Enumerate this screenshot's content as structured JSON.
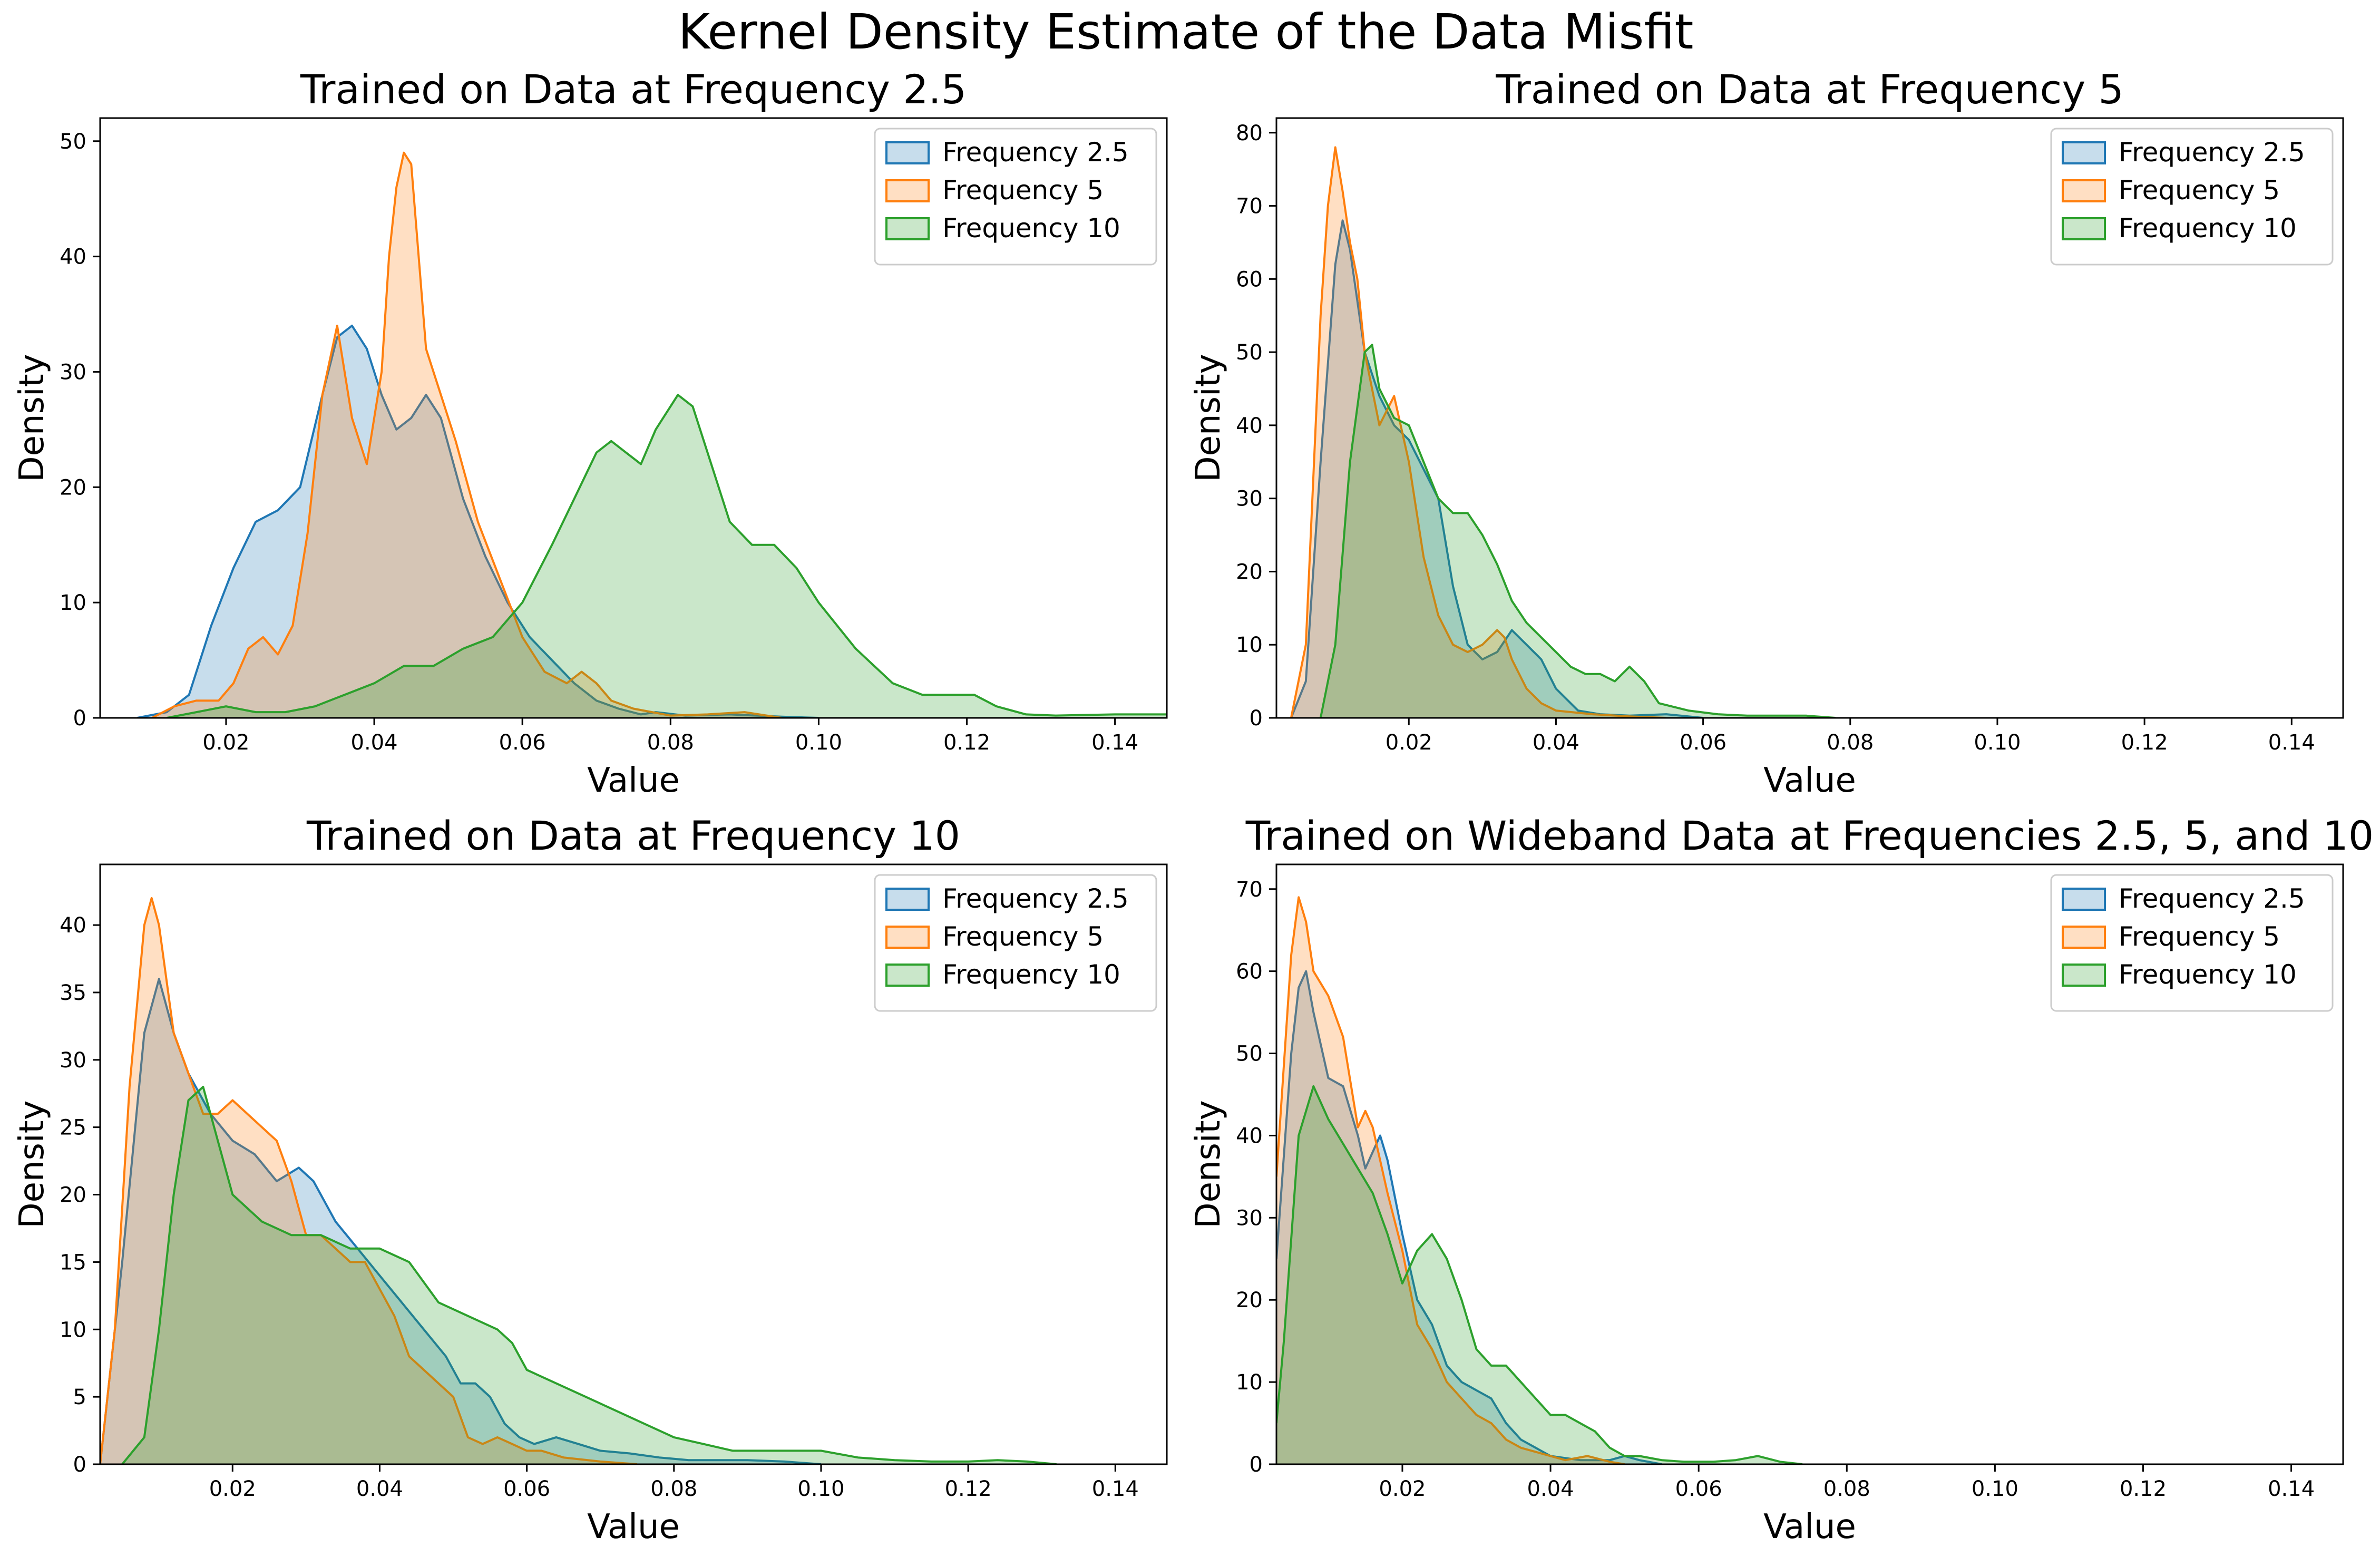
{
  "figure_title": "Kernel Density Estimate of the Data Misfit",
  "colors": {
    "Frequency 2.5": "#1f77b4",
    "Frequency 5": "#ff7f0e",
    "Frequency 10": "#2ca02c"
  },
  "chart_data": [
    {
      "type": "area",
      "title": "Trained on Data at Frequency 2.5",
      "xlabel": "Value",
      "ylabel": "Density",
      "xlim": [
        0.003,
        0.147
      ],
      "ylim": [
        0,
        52
      ],
      "xticks": [
        0.02,
        0.04,
        0.06,
        0.08,
        0.1,
        0.12,
        0.14
      ],
      "xtick_labels": [
        "0.02",
        "0.04",
        "0.06",
        "0.08",
        "0.10",
        "0.12",
        "0.14"
      ],
      "yticks": [
        0,
        10,
        20,
        30,
        40,
        50
      ],
      "ytick_labels": [
        "0",
        "10",
        "20",
        "30",
        "40",
        "50"
      ],
      "legend": "top-right",
      "grid": false,
      "series": [
        {
          "name": "Frequency 2.5",
          "x": [
            0.008,
            0.012,
            0.015,
            0.018,
            0.021,
            0.024,
            0.027,
            0.03,
            0.033,
            0.035,
            0.037,
            0.039,
            0.041,
            0.043,
            0.045,
            0.047,
            0.049,
            0.052,
            0.055,
            0.058,
            0.061,
            0.064,
            0.067,
            0.07,
            0.073,
            0.076,
            0.078,
            0.082,
            0.088,
            0.095,
            0.1
          ],
          "y": [
            0,
            0.5,
            2,
            8,
            13,
            17,
            18,
            20,
            28,
            33,
            34,
            32,
            28,
            25,
            26,
            28,
            26,
            19,
            14,
            10,
            7,
            5,
            3,
            1.5,
            0.8,
            0.3,
            0.5,
            0.2,
            0.3,
            0.1,
            0
          ]
        },
        {
          "name": "Frequency 5",
          "x": [
            0.01,
            0.013,
            0.016,
            0.019,
            0.021,
            0.023,
            0.025,
            0.027,
            0.029,
            0.031,
            0.033,
            0.035,
            0.037,
            0.039,
            0.041,
            0.042,
            0.043,
            0.044,
            0.045,
            0.046,
            0.047,
            0.049,
            0.051,
            0.054,
            0.057,
            0.06,
            0.063,
            0.066,
            0.068,
            0.07,
            0.072,
            0.075,
            0.08,
            0.085,
            0.09,
            0.095
          ],
          "y": [
            0,
            1,
            1.5,
            1.5,
            3,
            6,
            7,
            5.5,
            8,
            16,
            28,
            34,
            26,
            22,
            30,
            40,
            46,
            49,
            48,
            40,
            32,
            28,
            24,
            17,
            12,
            7,
            4,
            3,
            4,
            3,
            1.5,
            0.8,
            0.2,
            0.3,
            0.5,
            0
          ]
        },
        {
          "name": "Frequency 10",
          "x": [
            0.012,
            0.016,
            0.02,
            0.024,
            0.028,
            0.032,
            0.036,
            0.04,
            0.044,
            0.048,
            0.052,
            0.056,
            0.06,
            0.064,
            0.067,
            0.07,
            0.072,
            0.074,
            0.076,
            0.078,
            0.081,
            0.083,
            0.085,
            0.088,
            0.091,
            0.094,
            0.097,
            0.1,
            0.105,
            0.11,
            0.114,
            0.118,
            0.121,
            0.124,
            0.128,
            0.132,
            0.14,
            0.147
          ],
          "y": [
            0,
            0.5,
            1,
            0.5,
            0.5,
            1,
            2,
            3,
            4.5,
            4.5,
            6,
            7,
            10,
            15,
            19,
            23,
            24,
            23,
            22,
            25,
            28,
            27,
            23,
            17,
            15,
            15,
            13,
            10,
            6,
            3,
            2,
            2,
            2,
            1,
            0.3,
            0.2,
            0.3,
            0.3
          ]
        }
      ]
    },
    {
      "type": "area",
      "title": "Trained on Data at Frequency 5",
      "xlabel": "Value",
      "ylabel": "Density",
      "xlim": [
        0.002,
        0.147
      ],
      "ylim": [
        0,
        82
      ],
      "xticks": [
        0.02,
        0.04,
        0.06,
        0.08,
        0.1,
        0.12,
        0.14
      ],
      "xtick_labels": [
        "0.02",
        "0.04",
        "0.06",
        "0.08",
        "0.10",
        "0.12",
        "0.14"
      ],
      "yticks": [
        0,
        10,
        20,
        30,
        40,
        50,
        60,
        70,
        80
      ],
      "ytick_labels": [
        "0",
        "10",
        "20",
        "30",
        "40",
        "50",
        "60",
        "70",
        "80"
      ],
      "legend": "top-right",
      "grid": false,
      "series": [
        {
          "name": "Frequency 2.5",
          "x": [
            0.004,
            0.006,
            0.008,
            0.01,
            0.011,
            0.012,
            0.014,
            0.016,
            0.018,
            0.02,
            0.022,
            0.024,
            0.026,
            0.028,
            0.03,
            0.032,
            0.034,
            0.036,
            0.038,
            0.04,
            0.043,
            0.046,
            0.05,
            0.055,
            0.058,
            0.06
          ],
          "y": [
            0,
            5,
            35,
            62,
            68,
            64,
            50,
            44,
            40,
            38,
            34,
            30,
            18,
            10,
            8,
            9,
            12,
            10,
            8,
            4,
            1,
            0.5,
            0.3,
            0.5,
            0.2,
            0
          ]
        },
        {
          "name": "Frequency 5",
          "x": [
            0.004,
            0.006,
            0.008,
            0.009,
            0.01,
            0.011,
            0.012,
            0.013,
            0.014,
            0.016,
            0.018,
            0.02,
            0.022,
            0.024,
            0.026,
            0.028,
            0.03,
            0.032,
            0.033,
            0.034,
            0.036,
            0.038,
            0.04,
            0.045,
            0.05,
            0.055
          ],
          "y": [
            0,
            10,
            55,
            70,
            78,
            72,
            65,
            60,
            50,
            40,
            44,
            35,
            22,
            14,
            10,
            9,
            10,
            12,
            11,
            8,
            4,
            2,
            1,
            0.5,
            0.2,
            0
          ]
        },
        {
          "name": "Frequency 10",
          "x": [
            0.008,
            0.01,
            0.012,
            0.014,
            0.015,
            0.016,
            0.018,
            0.02,
            0.022,
            0.024,
            0.026,
            0.028,
            0.03,
            0.032,
            0.034,
            0.036,
            0.038,
            0.04,
            0.042,
            0.044,
            0.046,
            0.048,
            0.05,
            0.052,
            0.054,
            0.058,
            0.062,
            0.066,
            0.07,
            0.074,
            0.078
          ],
          "y": [
            0,
            10,
            35,
            50,
            51,
            45,
            41,
            40,
            35,
            30,
            28,
            28,
            25,
            21,
            16,
            13,
            11,
            9,
            7,
            6,
            6,
            5,
            7,
            5,
            2,
            1,
            0.5,
            0.3,
            0.3,
            0.3,
            0
          ]
        }
      ]
    },
    {
      "type": "area",
      "title": "Trained on Data at Frequency 10",
      "xlabel": "Value",
      "ylabel": "Density",
      "xlim": [
        0.002,
        0.147
      ],
      "ylim": [
        0,
        44.5
      ],
      "xticks": [
        0.02,
        0.04,
        0.06,
        0.08,
        0.1,
        0.12,
        0.14
      ],
      "xtick_labels": [
        "0.02",
        "0.04",
        "0.06",
        "0.08",
        "0.10",
        "0.12",
        "0.14"
      ],
      "yticks": [
        0,
        5,
        10,
        15,
        20,
        25,
        30,
        35,
        40
      ],
      "ytick_labels": [
        "0",
        "5",
        "10",
        "15",
        "20",
        "25",
        "30",
        "35",
        "40"
      ],
      "legend": "top-right",
      "grid": false,
      "series": [
        {
          "name": "Frequency 2.5",
          "x": [
            0.002,
            0.005,
            0.008,
            0.01,
            0.012,
            0.014,
            0.017,
            0.02,
            0.023,
            0.026,
            0.029,
            0.031,
            0.034,
            0.037,
            0.04,
            0.043,
            0.046,
            0.049,
            0.051,
            0.053,
            0.055,
            0.057,
            0.059,
            0.061,
            0.064,
            0.067,
            0.07,
            0.074,
            0.078,
            0.082,
            0.086,
            0.09,
            0.095,
            0.1
          ],
          "y": [
            0,
            15,
            32,
            36,
            32,
            29,
            26,
            24,
            23,
            21,
            22,
            21,
            18,
            16,
            14,
            12,
            10,
            8,
            6,
            6,
            5,
            3,
            2,
            1.5,
            2,
            1.5,
            1,
            0.8,
            0.5,
            0.3,
            0.3,
            0.3,
            0.2,
            0
          ]
        },
        {
          "name": "Frequency 5",
          "x": [
            0.002,
            0.004,
            0.006,
            0.008,
            0.009,
            0.01,
            0.012,
            0.014,
            0.016,
            0.018,
            0.02,
            0.022,
            0.024,
            0.026,
            0.028,
            0.03,
            0.032,
            0.034,
            0.036,
            0.038,
            0.04,
            0.042,
            0.044,
            0.046,
            0.048,
            0.05,
            0.052,
            0.054,
            0.056,
            0.058,
            0.06,
            0.062,
            0.065,
            0.07,
            0.075
          ],
          "y": [
            0,
            10,
            28,
            40,
            42,
            40,
            32,
            29,
            26,
            26,
            27,
            26,
            25,
            24,
            21,
            17,
            17,
            16,
            15,
            15,
            13,
            11,
            8,
            7,
            6,
            5,
            2,
            1.5,
            2,
            1.5,
            1,
            1,
            0.5,
            0.2,
            0
          ]
        },
        {
          "name": "Frequency 10",
          "x": [
            0.005,
            0.008,
            0.01,
            0.012,
            0.014,
            0.016,
            0.018,
            0.02,
            0.024,
            0.028,
            0.032,
            0.036,
            0.04,
            0.044,
            0.048,
            0.052,
            0.056,
            0.058,
            0.06,
            0.064,
            0.068,
            0.072,
            0.076,
            0.08,
            0.084,
            0.088,
            0.092,
            0.096,
            0.1,
            0.105,
            0.11,
            0.115,
            0.12,
            0.124,
            0.128,
            0.132
          ],
          "y": [
            0,
            2,
            10,
            20,
            27,
            28,
            24,
            20,
            18,
            17,
            17,
            16,
            16,
            15,
            12,
            11,
            10,
            9,
            7,
            6,
            5,
            4,
            3,
            2,
            1.5,
            1,
            1,
            1,
            1,
            0.5,
            0.3,
            0.2,
            0.2,
            0.3,
            0.2,
            0
          ]
        }
      ]
    },
    {
      "type": "area",
      "title": "Trained on Wideband Data at Frequencies 2.5, 5, and 10",
      "xlabel": "Value",
      "ylabel": "Density",
      "xlim": [
        0.003,
        0.147
      ],
      "ylim": [
        0,
        73
      ],
      "xticks": [
        0.02,
        0.04,
        0.06,
        0.08,
        0.1,
        0.12,
        0.14
      ],
      "xtick_labels": [
        "0.02",
        "0.04",
        "0.06",
        "0.08",
        "0.10",
        "0.12",
        "0.14"
      ],
      "yticks": [
        0,
        10,
        20,
        30,
        40,
        50,
        60,
        70
      ],
      "ytick_labels": [
        "0",
        "10",
        "20",
        "30",
        "40",
        "50",
        "60",
        "70"
      ],
      "legend": "top-right",
      "grid": false,
      "series": [
        {
          "name": "Frequency 2.5",
          "x": [
            0.003,
            0.005,
            0.006,
            0.007,
            0.008,
            0.01,
            0.012,
            0.014,
            0.015,
            0.016,
            0.017,
            0.018,
            0.02,
            0.022,
            0.024,
            0.026,
            0.028,
            0.03,
            0.032,
            0.034,
            0.036,
            0.038,
            0.04,
            0.044,
            0.048,
            0.05,
            0.052,
            0.055
          ],
          "y": [
            25,
            50,
            58,
            60,
            55,
            47,
            46,
            40,
            36,
            38,
            40,
            37,
            28,
            20,
            17,
            12,
            10,
            9,
            8,
            5,
            3,
            2,
            1,
            0.5,
            0.5,
            1,
            0.5,
            0
          ]
        },
        {
          "name": "Frequency 5",
          "x": [
            0.003,
            0.005,
            0.006,
            0.007,
            0.008,
            0.01,
            0.012,
            0.014,
            0.015,
            0.016,
            0.018,
            0.02,
            0.022,
            0.024,
            0.026,
            0.028,
            0.03,
            0.032,
            0.034,
            0.036,
            0.038,
            0.04,
            0.042,
            0.045,
            0.048,
            0.05
          ],
          "y": [
            35,
            62,
            69,
            66,
            60,
            57,
            52,
            41,
            43,
            41,
            33,
            26,
            17,
            14,
            10,
            8,
            6,
            5,
            3,
            2,
            1.5,
            1,
            0.5,
            1,
            0.3,
            0
          ]
        },
        {
          "name": "Frequency 10",
          "x": [
            0.003,
            0.004,
            0.006,
            0.008,
            0.01,
            0.012,
            0.014,
            0.016,
            0.018,
            0.02,
            0.022,
            0.024,
            0.026,
            0.028,
            0.03,
            0.032,
            0.034,
            0.036,
            0.038,
            0.04,
            0.042,
            0.044,
            0.046,
            0.048,
            0.05,
            0.052,
            0.055,
            0.058,
            0.062,
            0.065,
            0.068,
            0.071,
            0.074
          ],
          "y": [
            5,
            15,
            40,
            46,
            42,
            39,
            36,
            33,
            28,
            22,
            26,
            28,
            25,
            20,
            14,
            12,
            12,
            10,
            8,
            6,
            6,
            5,
            4,
            2,
            1,
            1,
            0.5,
            0.3,
            0.3,
            0.5,
            1,
            0.3,
            0
          ]
        }
      ]
    }
  ]
}
